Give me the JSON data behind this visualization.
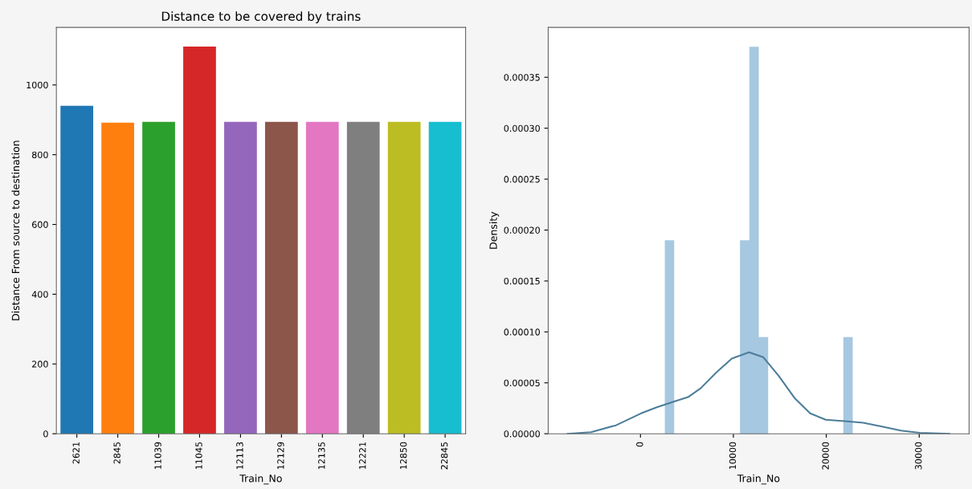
{
  "chart_data": [
    {
      "type": "bar",
      "title": "Distance to be covered by trains",
      "xlabel": "Train_No",
      "ylabel": "Distance From source to destination",
      "categories": [
        "2621",
        "2845",
        "11039",
        "11045",
        "12113",
        "12129",
        "12135",
        "12221",
        "12850",
        "22845"
      ],
      "values": [
        940,
        892,
        894,
        1110,
        894,
        894,
        894,
        894,
        894,
        894
      ],
      "colors": [
        "#1f77b4",
        "#ff7f0e",
        "#2ca02c",
        "#d62728",
        "#9467bd",
        "#8c564b",
        "#e377c2",
        "#7f7f7f",
        "#bcbd22",
        "#17becf"
      ],
      "ylim": [
        0,
        1165
      ],
      "yticks": [
        0,
        200,
        400,
        600,
        800,
        1000
      ],
      "grid": false
    },
    {
      "type": "histogram",
      "xlabel": "Train_No",
      "ylabel": "Density",
      "color": "#a6c8e0",
      "bins": [
        2621,
        3632,
        4643,
        5655,
        6666,
        7677,
        8688,
        9699,
        10711,
        11722,
        12733,
        13744,
        14755,
        15767,
        16778,
        17789,
        18800,
        19811,
        20822,
        21834,
        22845
      ],
      "values": [
        0.00019,
        0,
        0,
        0,
        0,
        0,
        0,
        0,
        0.00019,
        0.00038,
        9.5e-05,
        0,
        0,
        0,
        0,
        0,
        0,
        0,
        0,
        9.5e-05
      ],
      "series": [
        {
          "type": "line",
          "color": "#4c7d99",
          "x": [
            -7850,
            -5320,
            -2630,
            60,
            1750,
            3440,
            5120,
            6470,
            8150,
            9840,
            11690,
            13200,
            14880,
            16570,
            18260,
            19940,
            21970,
            23980,
            26000,
            28030,
            30040,
            33250
          ],
          "values": [
            0,
            1.5e-06,
            8.3e-06,
            2e-05,
            2.6e-05,
            3.1e-05,
            3.6e-05,
            4.46e-05,
            6e-05,
            7.38e-05,
            8e-05,
            7.53e-05,
            5.68e-05,
            3.53e-05,
            2e-05,
            1.38e-05,
            1.23e-05,
            1.08e-05,
            7.1e-06,
            3.1e-06,
            9e-07,
            0
          ]
        }
      ],
      "xlim": [
        -9930,
        35370
      ],
      "xticks": [
        0,
        10000,
        20000,
        30000
      ],
      "ylim": [
        0,
        0.000399
      ],
      "yticks": [
        {
          "value": 0,
          "label": "0.00000"
        },
        {
          "value": 5e-05,
          "label": "0.00005"
        },
        {
          "value": 0.0001,
          "label": "0.00010"
        },
        {
          "value": 0.00015,
          "label": "0.00015"
        },
        {
          "value": 0.0002,
          "label": "0.00020"
        },
        {
          "value": 0.00025,
          "label": "0.00025"
        },
        {
          "value": 0.0003,
          "label": "0.00030"
        },
        {
          "value": 0.00035,
          "label": "0.00035"
        }
      ],
      "grid": false
    }
  ]
}
